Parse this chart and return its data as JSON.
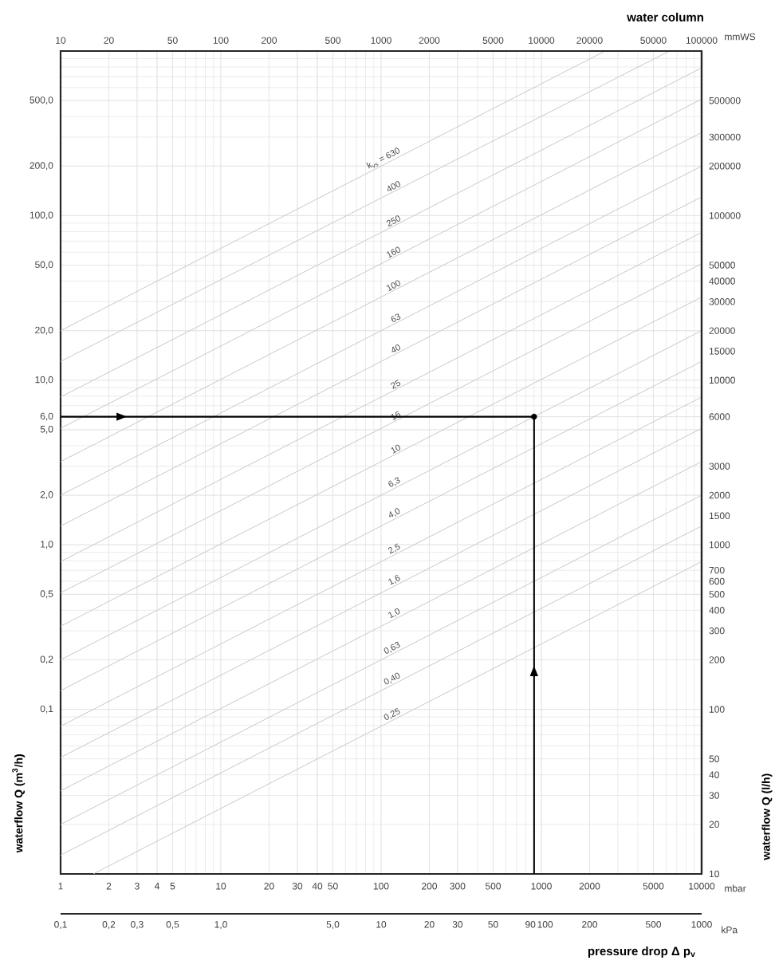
{
  "chart_data": [
    {
      "type": "line",
      "ylabel": "waterflow Q (m$^{3}$/h)",
      "annotations": [
        "mbar"
      ],
      "log": "xy",
      "grid": true,
      "xlim": [
        1,
        10000
      ],
      "xticks": [
        1,
        2,
        3,
        4,
        5,
        10,
        20,
        30,
        40,
        50,
        100,
        200,
        300,
        500,
        1000,
        2000,
        5000,
        10000
      ],
      "ylim": [
        0.01,
        1000
      ],
      "yticks": [
        {
          "value": 0.1,
          "label": "0,1"
        },
        {
          "value": 0.2,
          "label": "0,2"
        },
        {
          "value": 0.5,
          "label": "0,5"
        },
        {
          "value": 1,
          "label": "1,0"
        },
        {
          "value": 2,
          "label": "2,0"
        },
        {
          "value": 5,
          "label": "5,0"
        },
        {
          "value": 6,
          "label": "6,0"
        },
        {
          "value": 10,
          "label": "10,0"
        },
        {
          "value": 20,
          "label": "20,0"
        },
        {
          "value": 50,
          "label": "50,0"
        },
        {
          "value": 100,
          "label": "100,0"
        },
        {
          "value": 200,
          "label": "200,0"
        },
        {
          "value": 500,
          "label": "500,0"
        }
      ],
      "series": [
        {
          "name": "k$_{vs}$ = 630",
          "color": "#c8c8c8",
          "x": [
            1,
            2500
          ],
          "values": [
            20,
            1000
          ]
        },
        {
          "name": "400",
          "color": "#c8c8c8",
          "x": [
            1,
            6300
          ],
          "values": [
            13,
            1000
          ]
        },
        {
          "name": "250",
          "color": "#c8c8c8",
          "x": [
            1,
            10000
          ],
          "values": [
            7.9,
            790
          ]
        },
        {
          "name": "160",
          "color": "#c8c8c8",
          "x": [
            1,
            10000
          ],
          "values": [
            5.1,
            510
          ]
        },
        {
          "name": "100",
          "color": "#c8c8c8",
          "x": [
            1,
            10000
          ],
          "values": [
            3.2,
            320
          ]
        },
        {
          "name": "63",
          "color": "#c8c8c8",
          "x": [
            1,
            10000
          ],
          "values": [
            2,
            200
          ]
        },
        {
          "name": "40",
          "color": "#c8c8c8",
          "x": [
            1,
            10000
          ],
          "values": [
            1.3,
            130
          ]
        },
        {
          "name": "25",
          "color": "#c8c8c8",
          "x": [
            1,
            10000
          ],
          "values": [
            0.79,
            79
          ]
        },
        {
          "name": "16",
          "color": "#c8c8c8",
          "x": [
            1,
            10000
          ],
          "values": [
            0.51,
            51
          ]
        },
        {
          "name": "10",
          "color": "#c8c8c8",
          "x": [
            1,
            10000
          ],
          "values": [
            0.32,
            32
          ]
        },
        {
          "name": "6,3",
          "color": "#c8c8c8",
          "x": [
            1,
            10000
          ],
          "values": [
            0.2,
            20
          ]
        },
        {
          "name": "4,0",
          "color": "#c8c8c8",
          "x": [
            1,
            10000
          ],
          "values": [
            0.13,
            13
          ]
        },
        {
          "name": "2,5",
          "color": "#c8c8c8",
          "x": [
            1,
            10000
          ],
          "values": [
            0.079,
            7.9
          ]
        },
        {
          "name": "1,6",
          "color": "#c8c8c8",
          "x": [
            1,
            10000
          ],
          "values": [
            0.051,
            5.1
          ]
        },
        {
          "name": "1,0",
          "color": "#c8c8c8",
          "x": [
            1,
            10000
          ],
          "values": [
            0.032,
            3.2
          ]
        },
        {
          "name": "0,63",
          "color": "#c8c8c8",
          "x": [
            1,
            10000
          ],
          "values": [
            0.02,
            2
          ]
        },
        {
          "name": "0,40",
          "color": "#c8c8c8",
          "x": [
            1,
            10000
          ],
          "values": [
            0.013,
            1.3
          ]
        },
        {
          "name": "0,25",
          "color": "#c8c8c8",
          "x": [
            1.6,
            10000
          ],
          "values": [
            0.01,
            0.79
          ]
        },
        {
          "color": "#000000",
          "x": [
            1,
            900
          ],
          "values": [
            6,
            6
          ]
        },
        {
          "color": "#000000",
          "x": [
            900,
            900
          ],
          "values": [
            0.01,
            6
          ]
        },
        {
          "type": "scatter",
          "color": "#000000",
          "marker": "circle",
          "x": [
            900
          ],
          "values": [
            6
          ]
        }
      ]
    },
    {
      "type": "line",
      "xlabel": "water column",
      "annotations": [
        "mmWS"
      ],
      "log": "xy",
      "tick_labels": "x",
      "xlim": [
        10,
        100000
      ],
      "xticks": [
        10,
        20,
        50,
        100,
        200,
        500,
        1000,
        2000,
        5000,
        10000,
        20000,
        50000,
        100000
      ],
      "ylim": [
        0.01,
        1000
      ]
    },
    {
      "type": "line",
      "ylabel": "waterflow Q (l/h)",
      "log": "xy",
      "tick_labels": "y",
      "xlim": [
        1,
        10000
      ],
      "ylim": [
        10,
        1000000
      ],
      "yticks": [
        10,
        20,
        30,
        40,
        50,
        100,
        200,
        300,
        400,
        500,
        600,
        700,
        1000,
        1500,
        2000,
        3000,
        6000,
        10000,
        15000,
        20000,
        30000,
        40000,
        50000,
        100000,
        200000,
        300000,
        500000
      ]
    },
    {
      "type": "line",
      "xlabel": "pressure drop Δ p$_{v}$",
      "annotations": [
        "kPa"
      ],
      "log": "xy",
      "tick_labels": "x",
      "xlim": [
        0.1,
        1000
      ],
      "xticks": [
        {
          "value": 0.1,
          "label": "0,1"
        },
        {
          "value": 0.2,
          "label": "0,2"
        },
        {
          "value": 0.3,
          "label": "0,3"
        },
        {
          "value": 0.5,
          "label": "0,5"
        },
        {
          "value": 1,
          "label": "1,0"
        },
        {
          "value": 5,
          "label": "5,0"
        },
        10,
        20,
        30,
        50,
        90,
        100,
        200,
        500,
        1000
      ],
      "ylim": [
        0.01,
        1000
      ]
    }
  ]
}
